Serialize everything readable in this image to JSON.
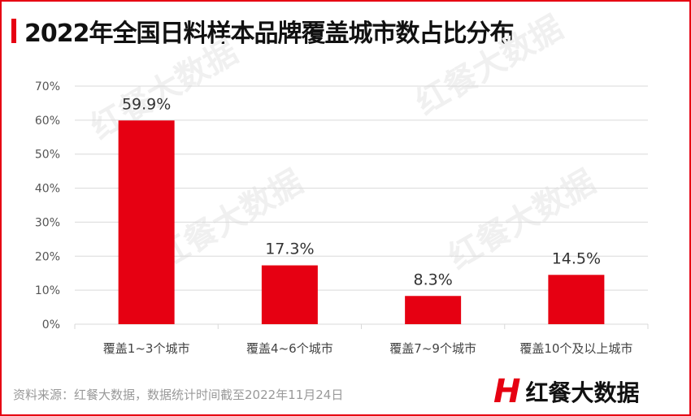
{
  "title": "2022年全国日料样本品牌覆盖城市数占比分布",
  "source": "资料来源：红餐大数据，数据统计时间截至2022年11月24日",
  "logo": {
    "mark": "H",
    "text": "红餐大数据"
  },
  "watermark": "红餐大数据",
  "colors": {
    "accent": "#e60012",
    "bar": "#e60012",
    "grid": "#d9d9d9"
  },
  "chart_data": {
    "type": "bar",
    "categories": [
      "覆盖1~3个城市",
      "覆盖4~6个城市",
      "覆盖7~9个城市",
      "覆盖10个及以上城市"
    ],
    "values": [
      59.9,
      17.3,
      8.3,
      14.5
    ],
    "data_labels": [
      "59.9%",
      "17.3%",
      "8.3%",
      "14.5%"
    ],
    "yticks": [
      "0%",
      "10%",
      "20%",
      "30%",
      "40%",
      "50%",
      "60%",
      "70%"
    ],
    "ylim": [
      0,
      70
    ],
    "grid": true,
    "legend": "none"
  }
}
